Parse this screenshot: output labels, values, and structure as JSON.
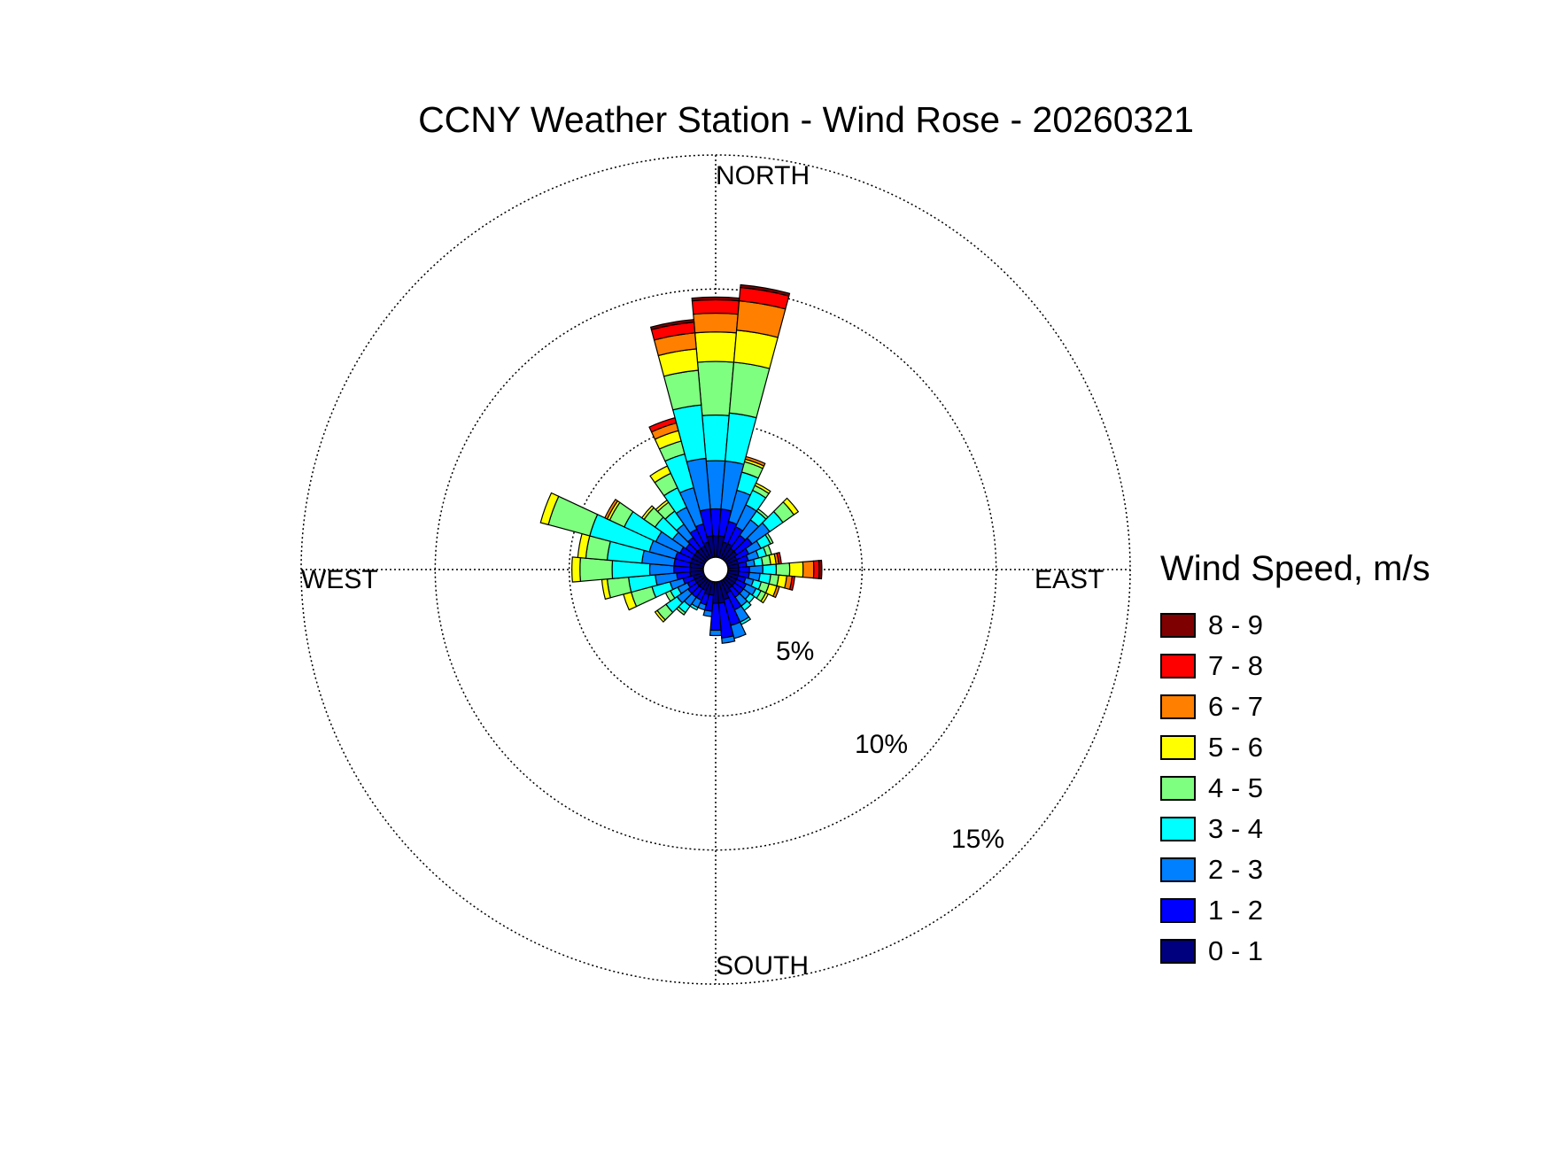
{
  "chart_data": {
    "type": "wind-rose",
    "title": "CCNY Weather Station - Wind Rose - 20260321",
    "directions": [
      "NORTH",
      "EAST",
      "SOUTH",
      "WEST"
    ],
    "ring_labels": [
      "5%",
      "10%",
      "15%"
    ],
    "rings": [
      5,
      10,
      15
    ],
    "rmax": 15,
    "grid": true,
    "legend_placement": "right",
    "legend_title": "Wind Speed, m/s",
    "speed_bins": [
      {
        "label": "0 - 1",
        "color": "#00007f"
      },
      {
        "label": "1 - 2",
        "color": "#0000ff"
      },
      {
        "label": "2 - 3",
        "color": "#007fff"
      },
      {
        "label": "3 - 4",
        "color": "#00ffff"
      },
      {
        "label": "4 - 5",
        "color": "#7fff7f"
      },
      {
        "label": "5 - 6",
        "color": "#ffff00"
      },
      {
        "label": "6 - 7",
        "color": "#ff7f00"
      },
      {
        "label": "7 - 8",
        "color": "#ff0000"
      },
      {
        "label": "8 - 9",
        "color": "#7f0000"
      }
    ],
    "sector_width_deg": 10,
    "sectors": [
      {
        "dir": 0,
        "cum": [
          0.8,
          1.8,
          3.6,
          5.3,
          7.3,
          8.4,
          9.1,
          9.6,
          9.7
        ]
      },
      {
        "dir": 10,
        "cum": [
          0.8,
          1.8,
          3.6,
          5.4,
          7.3,
          8.5,
          9.6,
          10.1,
          10.2
        ]
      },
      {
        "dir": 20,
        "cum": [
          0.6,
          1.4,
          2.6,
          3.3,
          3.7,
          3.8,
          3.9,
          3.9,
          3.9
        ]
      },
      {
        "dir": 30,
        "cum": [
          0.6,
          1.3,
          2.2,
          2.8,
          3.0,
          3.1,
          3.1,
          3.1,
          3.1
        ]
      },
      {
        "dir": 40,
        "cum": [
          0.5,
          1.1,
          1.8,
          2.2,
          2.3,
          2.3,
          2.3,
          2.3,
          2.3
        ]
      },
      {
        "dir": 50,
        "cum": [
          0.5,
          1.2,
          2.0,
          2.6,
          3.1,
          3.3,
          3.3,
          3.3,
          3.3
        ]
      },
      {
        "dir": 60,
        "cum": [
          0.4,
          0.9,
          1.4,
          1.8,
          1.9,
          1.9,
          1.9,
          1.9,
          1.9
        ]
      },
      {
        "dir": 70,
        "cum": [
          0.4,
          0.8,
          1.2,
          1.5,
          1.7,
          1.7,
          1.7,
          1.7,
          1.7
        ]
      },
      {
        "dir": 80,
        "cum": [
          0.4,
          0.7,
          1.0,
          1.3,
          1.6,
          1.8,
          1.9,
          2.0,
          2.0
        ]
      },
      {
        "dir": 90,
        "cum": [
          0.4,
          0.8,
          1.3,
          1.8,
          2.3,
          2.8,
          3.2,
          3.4,
          3.5
        ]
      },
      {
        "dir": 100,
        "cum": [
          0.4,
          0.8,
          1.2,
          1.6,
          1.9,
          2.2,
          2.4,
          2.5,
          2.5
        ]
      },
      {
        "dir": 110,
        "cum": [
          0.4,
          0.7,
          1.0,
          1.3,
          1.6,
          1.9,
          2.0,
          2.0,
          2.0
        ]
      },
      {
        "dir": 120,
        "cum": [
          0.4,
          0.8,
          1.2,
          1.4,
          1.6,
          1.7,
          1.7,
          1.7,
          1.7
        ]
      },
      {
        "dir": 130,
        "cum": [
          0.4,
          0.8,
          1.1,
          1.3,
          1.3,
          1.3,
          1.3,
          1.3,
          1.3
        ]
      },
      {
        "dir": 140,
        "cum": [
          0.4,
          0.8,
          1.2,
          1.4,
          1.4,
          1.4,
          1.4,
          1.4,
          1.4
        ]
      },
      {
        "dir": 150,
        "cum": [
          0.5,
          1.2,
          1.7,
          1.8,
          1.8,
          1.8,
          1.8,
          1.8,
          1.8
        ]
      },
      {
        "dir": 160,
        "cum": [
          0.7,
          1.7,
          2.2,
          2.2,
          2.2,
          2.2,
          2.2,
          2.2,
          2.2
        ]
      },
      {
        "dir": 170,
        "cum": [
          0.8,
          2.1,
          2.3,
          2.3,
          2.3,
          2.3,
          2.3,
          2.3,
          2.3
        ]
      },
      {
        "dir": 180,
        "cum": [
          0.8,
          1.8,
          2.0,
          2.0,
          2.0,
          2.0,
          2.0,
          2.0,
          2.0
        ]
      },
      {
        "dir": 190,
        "cum": [
          0.5,
          1.1,
          1.3,
          1.3,
          1.3,
          1.3,
          1.3,
          1.3,
          1.3
        ]
      },
      {
        "dir": 200,
        "cum": [
          0.5,
          0.9,
          1.1,
          1.1,
          1.1,
          1.1,
          1.1,
          1.1,
          1.1
        ]
      },
      {
        "dir": 210,
        "cum": [
          0.4,
          0.8,
          1.1,
          1.2,
          1.2,
          1.2,
          1.2,
          1.2,
          1.2
        ]
      },
      {
        "dir": 220,
        "cum": [
          0.4,
          0.8,
          1.2,
          1.5,
          1.6,
          1.6,
          1.6,
          1.6,
          1.6
        ]
      },
      {
        "dir": 230,
        "cum": [
          0.4,
          0.8,
          1.3,
          1.8,
          2.2,
          2.3,
          2.3,
          2.3,
          2.3
        ]
      },
      {
        "dir": 240,
        "cum": [
          0.4,
          0.7,
          1.1,
          1.4,
          1.6,
          1.6,
          1.6,
          1.6,
          1.6
        ]
      },
      {
        "dir": 250,
        "cum": [
          0.4,
          0.8,
          1.3,
          2.0,
          2.8,
          3.1,
          3.1,
          3.1,
          3.1
        ]
      },
      {
        "dir": 260,
        "cum": [
          0.5,
          1.0,
          1.8,
          2.8,
          3.6,
          3.8,
          3.8,
          3.8,
          3.8
        ]
      },
      {
        "dir": 270,
        "cum": [
          0.5,
          1.1,
          2.0,
          3.4,
          4.6,
          4.9,
          4.9,
          4.9,
          4.9
        ]
      },
      {
        "dir": 280,
        "cum": [
          0.5,
          1.1,
          2.3,
          3.6,
          4.4,
          4.7,
          4.7,
          4.7,
          4.7
        ]
      },
      {
        "dir": 290,
        "cum": [
          0.5,
          1.1,
          2.1,
          4.4,
          6.0,
          6.3,
          6.3,
          6.3,
          6.3
        ]
      },
      {
        "dir": 300,
        "cum": [
          0.5,
          1.0,
          2.0,
          3.3,
          3.9,
          4.0,
          4.1,
          4.1,
          4.1
        ]
      },
      {
        "dir": 310,
        "cum": [
          0.5,
          0.9,
          1.5,
          2.3,
          2.8,
          2.9,
          2.9,
          2.9,
          2.9
        ]
      },
      {
        "dir": 320,
        "cum": [
          0.5,
          1.0,
          1.6,
          2.2,
          2.6,
          2.7,
          2.7,
          2.7,
          2.7
        ]
      },
      {
        "dir": 330,
        "cum": [
          0.5,
          1.2,
          2.1,
          2.9,
          3.5,
          3.8,
          3.8,
          3.8,
          3.8
        ]
      },
      {
        "dir": 340,
        "cum": [
          0.6,
          1.3,
          2.7,
          4.0,
          4.5,
          4.9,
          5.2,
          5.4,
          5.4
        ]
      },
      {
        "dir": 350,
        "cum": [
          0.8,
          1.8,
          3.7,
          5.7,
          7.0,
          7.8,
          8.4,
          8.8,
          8.9
        ]
      }
    ]
  }
}
